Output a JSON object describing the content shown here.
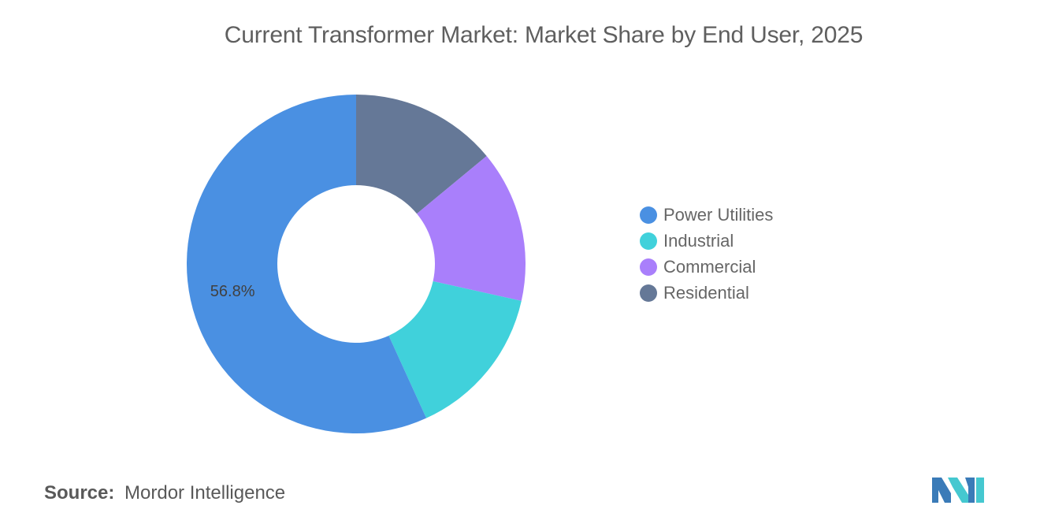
{
  "title": "Current Transformer Market: Market Share by End User, 2025",
  "chart_data": {
    "type": "pie",
    "variant": "donut",
    "title": "Current Transformer Market: Market Share by End User, 2025",
    "series": [
      {
        "name": "Power Utilities",
        "value": 56.8,
        "color": "#4a90e2"
      },
      {
        "name": "Industrial",
        "value": 14.7,
        "color": "#40d1db"
      },
      {
        "name": "Commercial",
        "value": 14.5,
        "color": "#a97ffb"
      },
      {
        "name": "Residential",
        "value": 14.0,
        "color": "#657897"
      }
    ],
    "data_labels": [
      {
        "series": "Power Utilities",
        "text": "56.8%"
      }
    ],
    "legend_position": "right"
  },
  "source": {
    "label": "Source:",
    "value": "Mordor Intelligence"
  },
  "logo": {
    "name": "mordor-intelligence-logo",
    "colors": [
      "#3a7bb8",
      "#45c8d0"
    ]
  }
}
